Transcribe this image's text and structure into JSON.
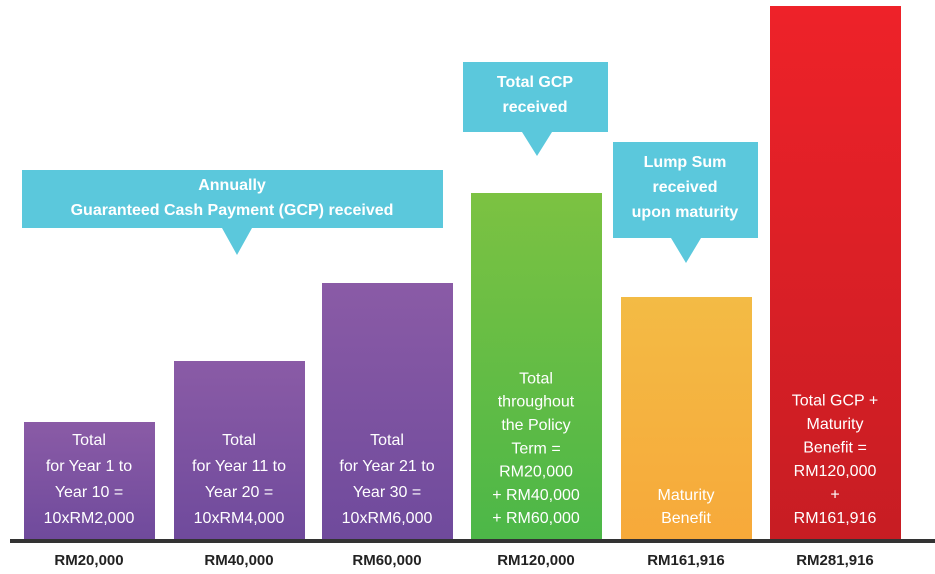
{
  "bars": [
    {
      "lines": [
        "Total",
        "for Year 1 to",
        "Year 10 =",
        "10xRM2,000"
      ],
      "amount": "RM20,000"
    },
    {
      "lines": [
        "Total",
        "for Year 11 to",
        "Year 20 =",
        "10xRM4,000"
      ],
      "amount": "RM40,000"
    },
    {
      "lines": [
        "Total",
        "for Year 21 to",
        "Year 30 =",
        "10xRM6,000"
      ],
      "amount": "RM60,000"
    },
    {
      "lines": [
        "Total",
        "throughout",
        "the Policy",
        "Term =",
        "RM20,000",
        "+ RM40,000",
        "+ RM60,000"
      ],
      "amount": "RM120,000"
    },
    {
      "lines": [
        "Maturity",
        "Benefit"
      ],
      "amount": "RM161,916"
    },
    {
      "lines": [
        "Total GCP +",
        "Maturity",
        "Benefit =",
        "RM120,000",
        "+",
        "RM161,916"
      ],
      "amount": "RM281,916"
    }
  ],
  "callouts": [
    {
      "lines": [
        "Annually",
        "Guaranteed Cash Payment (GCP) received"
      ]
    },
    {
      "lines": [
        "Total GCP",
        "received"
      ]
    },
    {
      "lines": [
        "Lump Sum",
        "received",
        "upon maturity"
      ]
    }
  ]
}
